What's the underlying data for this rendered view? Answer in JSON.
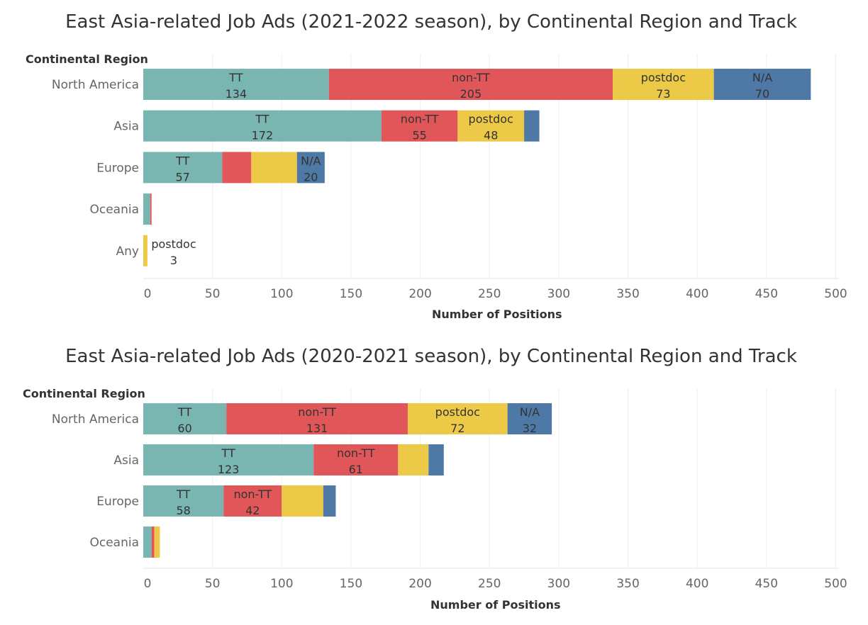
{
  "charts": [
    {
      "title": "East Asia-related Job Ads (2021-2022 season), by Continental Region and Track",
      "region_header": "Continental Region",
      "axis_title": "Number of Positions",
      "ticks": [
        "0",
        "50",
        "100",
        "150",
        "200",
        "250",
        "300",
        "350",
        "400",
        "450",
        "500"
      ]
    },
    {
      "title": "East Asia-related Job Ads (2020-2021 season), by Continental Region and Track",
      "region_header": "Continental Region",
      "axis_title": "Number of Positions",
      "ticks": [
        "0",
        "50",
        "100",
        "150",
        "200",
        "250",
        "300",
        "350",
        "400",
        "450",
        "500"
      ]
    }
  ],
  "chart_data": [
    {
      "type": "bar",
      "orientation": "horizontal",
      "stacked": true,
      "title": "East Asia-related Job Ads (2021-2022 season), by Continental Region and Track",
      "xlabel": "Number of Positions",
      "ylabel": "Continental Region",
      "xlim": [
        0,
        500
      ],
      "grid": true,
      "categories": [
        "North America",
        "Asia",
        "Europe",
        "Oceania",
        "Any"
      ],
      "series": [
        {
          "name": "TT",
          "color": "#7ab6b1",
          "values": [
            134,
            172,
            57,
            5,
            0
          ]
        },
        {
          "name": "non-TT",
          "color": "#e15759",
          "values": [
            205,
            55,
            21,
            1,
            0
          ]
        },
        {
          "name": "postdoc",
          "color": "#edc948",
          "values": [
            73,
            48,
            33,
            0,
            3
          ]
        },
        {
          "name": "N/A",
          "color": "#4e79a7",
          "values": [
            70,
            11,
            20,
            0,
            0
          ]
        }
      ],
      "labeled": [
        [
          true,
          true,
          true,
          true
        ],
        [
          true,
          true,
          true,
          false
        ],
        [
          true,
          false,
          false,
          true
        ],
        [
          false,
          false,
          false,
          false
        ],
        [
          false,
          false,
          true,
          false
        ]
      ]
    },
    {
      "type": "bar",
      "orientation": "horizontal",
      "stacked": true,
      "title": "East Asia-related Job Ads (2020-2021 season), by Continental Region and Track",
      "xlabel": "Number of Positions",
      "ylabel": "Continental Region",
      "xlim": [
        0,
        500
      ],
      "grid": true,
      "categories": [
        "North America",
        "Asia",
        "Europe",
        "Oceania"
      ],
      "series": [
        {
          "name": "TT",
          "color": "#7ab6b1",
          "values": [
            60,
            123,
            58,
            6
          ]
        },
        {
          "name": "non-TT",
          "color": "#e15759",
          "values": [
            131,
            61,
            42,
            2
          ]
        },
        {
          "name": "postdoc",
          "color": "#edc948",
          "values": [
            72,
            22,
            30,
            4
          ]
        },
        {
          "name": "N/A",
          "color": "#4e79a7",
          "values": [
            32,
            11,
            9,
            0
          ]
        }
      ],
      "labeled": [
        [
          true,
          true,
          true,
          true
        ],
        [
          true,
          true,
          false,
          false
        ],
        [
          true,
          true,
          false,
          false
        ],
        [
          false,
          false,
          false,
          false
        ]
      ]
    }
  ]
}
